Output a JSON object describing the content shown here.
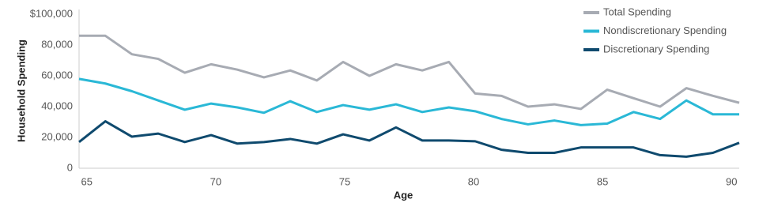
{
  "chart_data": {
    "type": "line",
    "x_label": "Age",
    "y_label": "Household Spending",
    "x": [
      64.7,
      65.72,
      66.75,
      67.77,
      68.8,
      69.82,
      70.84,
      71.87,
      72.89,
      73.92,
      74.94,
      75.96,
      76.99,
      78.01,
      79.04,
      80.06,
      81.08,
      82.11,
      83.13,
      84.16,
      85.18,
      86.2,
      87.23,
      88.25,
      89.28,
      90.3
    ],
    "series": [
      {
        "name": "Total Spending",
        "color": "#a7abb3",
        "values": [
          86000,
          86000,
          74000,
          71000,
          62000,
          67500,
          64000,
          59000,
          63500,
          57000,
          69000,
          60000,
          67500,
          63500,
          69000,
          48500,
          47000,
          40000,
          41500,
          38500,
          51000,
          45500,
          40000,
          52000,
          47000,
          42500
        ]
      },
      {
        "name": "Nondiscretionary Spending",
        "color": "#2ab8d6",
        "values": [
          58000,
          55000,
          50000,
          44000,
          38000,
          42000,
          39500,
          36000,
          43500,
          36500,
          41000,
          38000,
          41500,
          36500,
          39500,
          37000,
          32000,
          28500,
          31000,
          28000,
          29000,
          36500,
          32000,
          44000,
          35000,
          35000
        ]
      },
      {
        "name": "Discretionary Spending",
        "color": "#0f4a6e",
        "values": [
          17000,
          30500,
          20500,
          22500,
          17000,
          21500,
          16000,
          17000,
          19000,
          16000,
          22000,
          18000,
          26500,
          18000,
          18000,
          17500,
          12000,
          10000,
          10000,
          13500,
          13500,
          13500,
          8500,
          7500,
          10000,
          16500
        ]
      }
    ],
    "xlim": [
      64.7,
      90.3
    ],
    "xticks": [
      65,
      70,
      75,
      80,
      85,
      90
    ],
    "ylim": [
      0,
      100000
    ],
    "yticks": [
      0,
      {
        "value": 20000,
        "label": "20,000"
      },
      {
        "value": 40000,
        "label": "40,000"
      },
      {
        "value": 60000,
        "label": "60,000"
      },
      {
        "value": 80000,
        "label": "80,000"
      },
      {
        "value": 100000,
        "label": "$100,000"
      }
    ],
    "grid": false,
    "legend": "upper right"
  }
}
